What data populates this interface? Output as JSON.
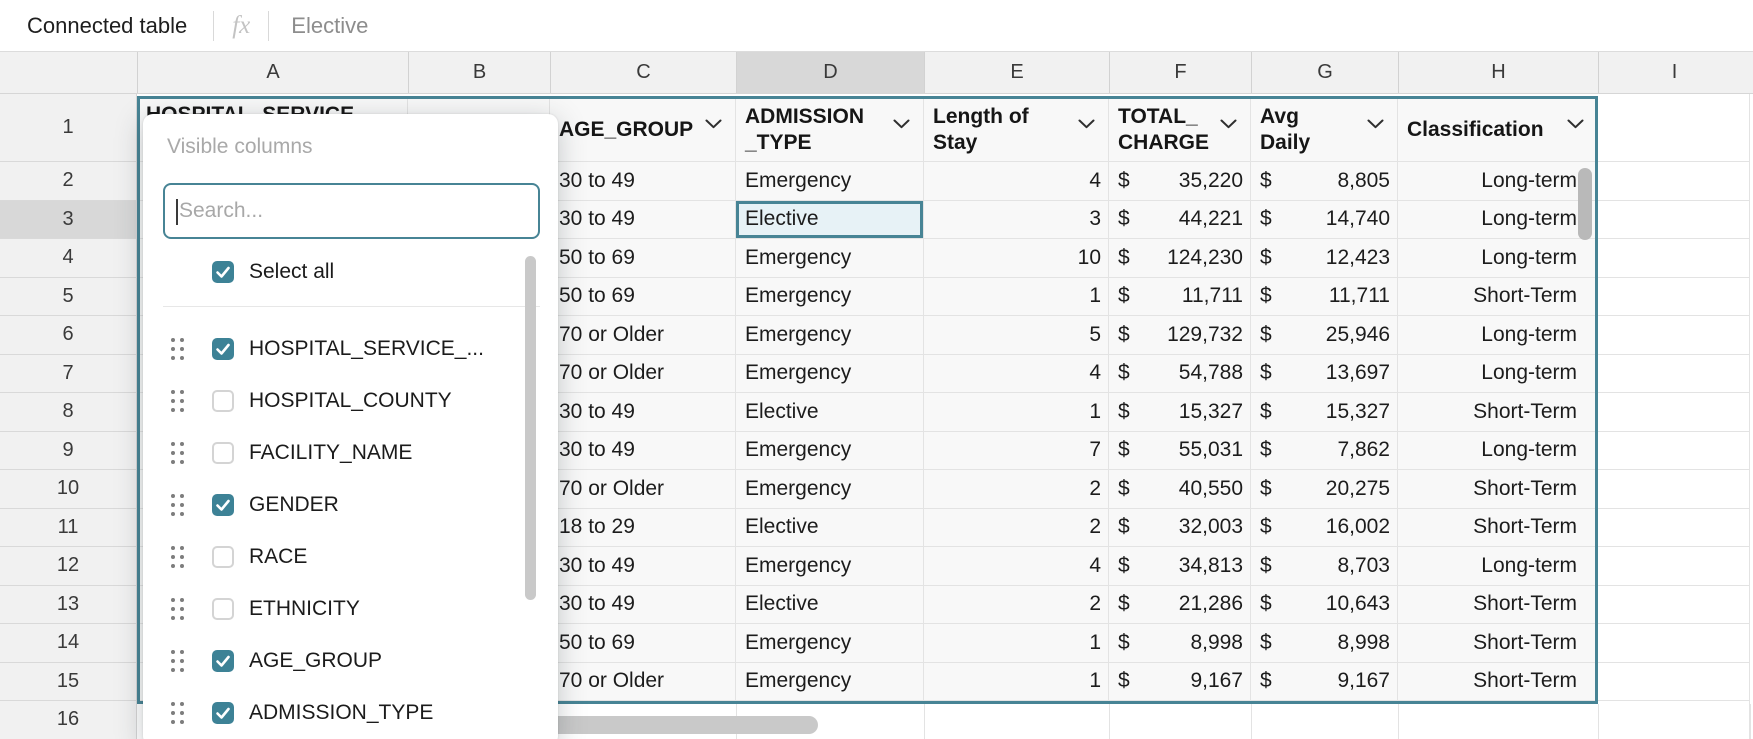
{
  "formula_bar": {
    "source_label": "Connected table",
    "fx_icon": "fx",
    "cell_value": "Elective"
  },
  "grid": {
    "column_letters": [
      "A",
      "B",
      "C",
      "D",
      "E",
      "F",
      "G",
      "H",
      "I"
    ],
    "row_numbers": [
      "1",
      "2",
      "3",
      "4",
      "5",
      "6",
      "7",
      "8",
      "9",
      "10",
      "11",
      "12",
      "13",
      "14",
      "15",
      "16"
    ],
    "highlighted_column": "D",
    "highlighted_row": "3"
  },
  "table": {
    "currency": "$",
    "headers": {
      "A": [
        "HOSPITAL_SERVICE"
      ],
      "B": [],
      "C": [
        "AGE_GROUP"
      ],
      "D": [
        "ADMISSION",
        "_TYPE"
      ],
      "E": [
        "Length of",
        "Stay"
      ],
      "F": [
        "TOTAL_",
        "CHARGE"
      ],
      "G": [
        "Avg",
        "Daily"
      ],
      "H": [
        "Classification"
      ]
    },
    "rows": [
      [
        "30 to 49",
        "Emergency",
        "4",
        "35,220",
        "8,805",
        "Long-term"
      ],
      [
        "30 to 49",
        "Elective",
        "3",
        "44,221",
        "14,740",
        "Long-term"
      ],
      [
        "50 to 69",
        "Emergency",
        "10",
        "124,230",
        "12,423",
        "Long-term"
      ],
      [
        "50 to 69",
        "Emergency",
        "1",
        "11,711",
        "11,711",
        "Short-Term"
      ],
      [
        "70 or Older",
        "Emergency",
        "5",
        "129,732",
        "25,946",
        "Long-term"
      ],
      [
        "70 or Older",
        "Emergency",
        "4",
        "54,788",
        "13,697",
        "Long-term"
      ],
      [
        "30 to 49",
        "Elective",
        "1",
        "15,327",
        "15,327",
        "Short-Term"
      ],
      [
        "30 to 49",
        "Emergency",
        "7",
        "55,031",
        "7,862",
        "Long-term"
      ],
      [
        "70 or Older",
        "Emergency",
        "2",
        "40,550",
        "20,275",
        "Short-Term"
      ],
      [
        "18 to 29",
        "Elective",
        "2",
        "32,003",
        "16,002",
        "Short-Term"
      ],
      [
        "30 to 49",
        "Emergency",
        "4",
        "34,813",
        "8,703",
        "Long-term"
      ],
      [
        "30 to 49",
        "Elective",
        "2",
        "21,286",
        "10,643",
        "Short-Term"
      ],
      [
        "50 to 69",
        "Emergency",
        "1",
        "8,998",
        "8,998",
        "Short-Term"
      ],
      [
        "70 or Older",
        "Emergency",
        "1",
        "9,167",
        "9,167",
        "Short-Term"
      ]
    ],
    "selected_cell": {
      "column": "D",
      "row_label": "3",
      "value": "Elective"
    }
  },
  "columns_menu": {
    "title": "Visible columns",
    "search_placeholder": "Search...",
    "select_all_label": "Select all",
    "items": [
      {
        "label": "HOSPITAL_SERVICE_...",
        "checked": true
      },
      {
        "label": "HOSPITAL_COUNTY",
        "checked": false
      },
      {
        "label": "FACILITY_NAME",
        "checked": false
      },
      {
        "label": "GENDER",
        "checked": true
      },
      {
        "label": "RACE",
        "checked": false
      },
      {
        "label": "ETHNICITY",
        "checked": false
      },
      {
        "label": "AGE_GROUP",
        "checked": true
      },
      {
        "label": "ADMISSION_TYPE",
        "checked": true
      }
    ]
  },
  "colors": {
    "accent_teal": "#478495",
    "checkbox_teal": "#3d8296",
    "selected_cell_bg": "#e7f2f6",
    "highlight_gray": "#d8d8d8"
  }
}
